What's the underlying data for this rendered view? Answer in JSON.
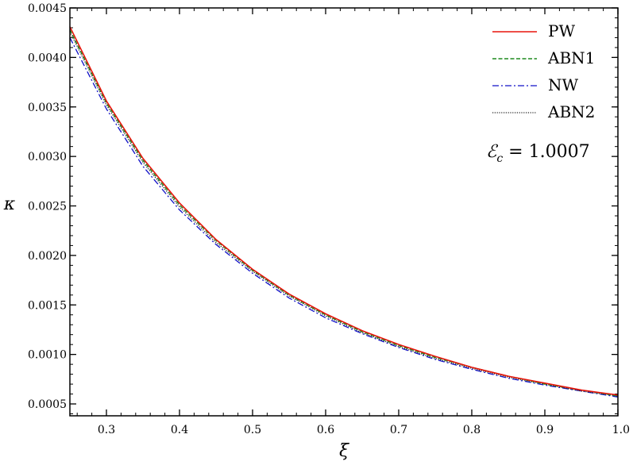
{
  "chart_data": {
    "type": "line",
    "title": "",
    "xlabel": "ξ",
    "ylabel": "κ",
    "xlim": [
      0.25,
      1.0
    ],
    "ylim": [
      0.00038,
      0.0045
    ],
    "grid": false,
    "legend_position": "top-right",
    "x_ticks": [
      0.3,
      0.4,
      0.5,
      0.6,
      0.7,
      0.8,
      0.9,
      1.0
    ],
    "x_tick_labels": [
      "0.3",
      "0.4",
      "0.5",
      "0.6",
      "0.7",
      "0.8",
      "0.9",
      "1.0"
    ],
    "y_ticks": [
      0.0005,
      0.001,
      0.0015,
      0.002,
      0.0025,
      0.003,
      0.0035,
      0.004,
      0.0045
    ],
    "y_tick_labels": [
      "0.0005",
      "0.0010",
      "0.0015",
      "0.0020",
      "0.0025",
      "0.0030",
      "0.0035",
      "0.0040",
      "0.0045"
    ],
    "x": [
      0.25,
      0.3,
      0.35,
      0.4,
      0.45,
      0.5,
      0.55,
      0.6,
      0.65,
      0.7,
      0.75,
      0.8,
      0.85,
      0.9,
      0.95,
      1.0
    ],
    "series": [
      {
        "name": "PW",
        "color": "#e8140c",
        "style": "solid",
        "values": [
          0.00431,
          0.00356,
          0.00298,
          0.00253,
          0.00216,
          0.00186,
          0.00161,
          0.00141,
          0.00124,
          0.0011,
          0.00098,
          0.00087,
          0.00078,
          0.00071,
          0.00064,
          0.00059
        ]
      },
      {
        "name": "ABN1",
        "color": "#1f8a1f",
        "style": "dashed",
        "values": [
          0.00428,
          0.00354,
          0.00296,
          0.00251,
          0.00215,
          0.00185,
          0.0016,
          0.0014,
          0.00123,
          0.00109,
          0.00097,
          0.00087,
          0.00078,
          0.0007,
          0.00064,
          0.00058
        ]
      },
      {
        "name": "NW",
        "color": "#1010c8",
        "style": "dashdot",
        "values": [
          0.0042,
          0.00348,
          0.0029,
          0.00246,
          0.00211,
          0.00182,
          0.00157,
          0.00137,
          0.00121,
          0.00107,
          0.00095,
          0.00085,
          0.00076,
          0.00069,
          0.00063,
          0.00057
        ]
      },
      {
        "name": "ABN2",
        "color": "#222222",
        "style": "dotted",
        "values": [
          0.00426,
          0.00352,
          0.00294,
          0.00249,
          0.00213,
          0.00184,
          0.00159,
          0.00139,
          0.00122,
          0.00108,
          0.00096,
          0.00086,
          0.00077,
          0.0007,
          0.00063,
          0.00058
        ]
      }
    ],
    "annotation": {
      "symbol": "ℰ",
      "subscript": "c",
      "text": " = 1.0007"
    }
  }
}
